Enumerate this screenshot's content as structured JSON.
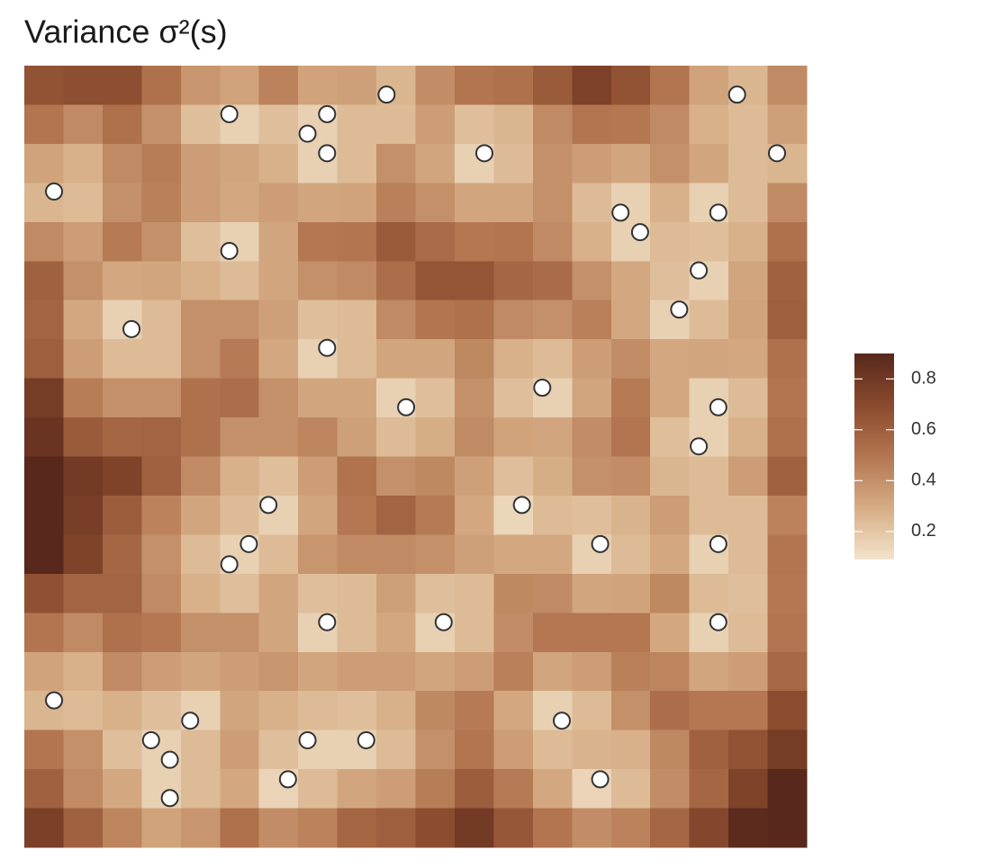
{
  "chart_data": {
    "type": "heatmap",
    "title": "Variance  σ²(s)",
    "xlim": [
      0,
      1
    ],
    "ylim": [
      0,
      1
    ],
    "z": [
      [
        0.66,
        0.68,
        0.68,
        0.52,
        0.38,
        0.33,
        0.45,
        0.33,
        0.34,
        0.26,
        0.41,
        0.5,
        0.52,
        0.62,
        0.75,
        0.66,
        0.5,
        0.33,
        0.26,
        0.42
      ],
      [
        0.5,
        0.42,
        0.52,
        0.4,
        0.23,
        0.16,
        0.23,
        0.16,
        0.24,
        0.24,
        0.35,
        0.23,
        0.26,
        0.42,
        0.5,
        0.49,
        0.42,
        0.28,
        0.24,
        0.34
      ],
      [
        0.33,
        0.28,
        0.42,
        0.47,
        0.35,
        0.32,
        0.28,
        0.16,
        0.24,
        0.4,
        0.32,
        0.16,
        0.24,
        0.4,
        0.35,
        0.32,
        0.4,
        0.32,
        0.24,
        0.26
      ],
      [
        0.26,
        0.24,
        0.4,
        0.46,
        0.35,
        0.31,
        0.35,
        0.32,
        0.33,
        0.46,
        0.4,
        0.32,
        0.32,
        0.4,
        0.24,
        0.16,
        0.28,
        0.16,
        0.24,
        0.42
      ],
      [
        0.42,
        0.35,
        0.48,
        0.4,
        0.23,
        0.16,
        0.32,
        0.49,
        0.5,
        0.62,
        0.54,
        0.49,
        0.5,
        0.42,
        0.28,
        0.16,
        0.24,
        0.23,
        0.28,
        0.52
      ],
      [
        0.59,
        0.4,
        0.31,
        0.32,
        0.28,
        0.24,
        0.32,
        0.4,
        0.42,
        0.53,
        0.65,
        0.65,
        0.57,
        0.54,
        0.4,
        0.31,
        0.23,
        0.16,
        0.32,
        0.59
      ],
      [
        0.58,
        0.31,
        0.16,
        0.24,
        0.4,
        0.4,
        0.34,
        0.23,
        0.24,
        0.42,
        0.5,
        0.52,
        0.42,
        0.4,
        0.46,
        0.31,
        0.16,
        0.24,
        0.33,
        0.6
      ],
      [
        0.6,
        0.35,
        0.24,
        0.24,
        0.4,
        0.48,
        0.31,
        0.16,
        0.24,
        0.32,
        0.32,
        0.43,
        0.28,
        0.24,
        0.35,
        0.41,
        0.31,
        0.32,
        0.31,
        0.52
      ],
      [
        0.78,
        0.47,
        0.4,
        0.4,
        0.52,
        0.53,
        0.4,
        0.32,
        0.32,
        0.16,
        0.23,
        0.4,
        0.23,
        0.16,
        0.32,
        0.48,
        0.31,
        0.16,
        0.24,
        0.5
      ],
      [
        0.83,
        0.62,
        0.57,
        0.58,
        0.52,
        0.4,
        0.4,
        0.44,
        0.34,
        0.24,
        0.29,
        0.42,
        0.33,
        0.32,
        0.41,
        0.5,
        0.23,
        0.16,
        0.28,
        0.52
      ],
      [
        0.9,
        0.79,
        0.74,
        0.59,
        0.42,
        0.28,
        0.23,
        0.35,
        0.51,
        0.4,
        0.43,
        0.34,
        0.23,
        0.29,
        0.4,
        0.41,
        0.26,
        0.24,
        0.35,
        0.59
      ],
      [
        0.9,
        0.77,
        0.61,
        0.45,
        0.32,
        0.24,
        0.16,
        0.32,
        0.49,
        0.58,
        0.48,
        0.31,
        0.14,
        0.24,
        0.23,
        0.27,
        0.35,
        0.24,
        0.24,
        0.45
      ],
      [
        0.9,
        0.74,
        0.57,
        0.4,
        0.24,
        0.16,
        0.24,
        0.38,
        0.42,
        0.42,
        0.4,
        0.34,
        0.31,
        0.31,
        0.16,
        0.24,
        0.31,
        0.16,
        0.24,
        0.5
      ],
      [
        0.67,
        0.58,
        0.58,
        0.42,
        0.28,
        0.23,
        0.32,
        0.23,
        0.24,
        0.34,
        0.23,
        0.24,
        0.43,
        0.42,
        0.32,
        0.33,
        0.43,
        0.24,
        0.23,
        0.49
      ],
      [
        0.5,
        0.42,
        0.52,
        0.49,
        0.4,
        0.4,
        0.32,
        0.16,
        0.24,
        0.31,
        0.16,
        0.24,
        0.41,
        0.49,
        0.49,
        0.49,
        0.31,
        0.16,
        0.24,
        0.5
      ],
      [
        0.33,
        0.28,
        0.42,
        0.35,
        0.32,
        0.35,
        0.38,
        0.32,
        0.35,
        0.35,
        0.32,
        0.35,
        0.46,
        0.32,
        0.35,
        0.46,
        0.44,
        0.32,
        0.35,
        0.56
      ],
      [
        0.26,
        0.24,
        0.28,
        0.23,
        0.16,
        0.32,
        0.28,
        0.24,
        0.23,
        0.28,
        0.43,
        0.48,
        0.31,
        0.16,
        0.24,
        0.4,
        0.53,
        0.49,
        0.49,
        0.69
      ],
      [
        0.5,
        0.4,
        0.23,
        0.16,
        0.24,
        0.35,
        0.23,
        0.16,
        0.16,
        0.24,
        0.4,
        0.5,
        0.35,
        0.24,
        0.27,
        0.28,
        0.43,
        0.59,
        0.66,
        0.78
      ],
      [
        0.59,
        0.42,
        0.31,
        0.16,
        0.24,
        0.31,
        0.15,
        0.24,
        0.32,
        0.35,
        0.47,
        0.61,
        0.48,
        0.31,
        0.15,
        0.24,
        0.41,
        0.57,
        0.74,
        0.9
      ],
      [
        0.76,
        0.59,
        0.44,
        0.33,
        0.38,
        0.52,
        0.41,
        0.45,
        0.57,
        0.6,
        0.69,
        0.79,
        0.64,
        0.5,
        0.41,
        0.45,
        0.57,
        0.72,
        0.88,
        0.9
      ]
    ],
    "zlim": [
      0.09,
      0.9
    ],
    "zticks": [
      0.2,
      0.4,
      0.6,
      0.8
    ],
    "colors": [
      "#f2e3cc",
      "#d6ad85",
      "#b37650",
      "#8a4a2e",
      "#57281b"
    ],
    "points": {
      "x": [
        0.463,
        0.262,
        0.387,
        0.362,
        0.387,
        0.588,
        0.911,
        0.962,
        0.038,
        0.762,
        0.887,
        0.787,
        0.262,
        0.862,
        0.837,
        0.137,
        0.387,
        0.662,
        0.488,
        0.887,
        0.862,
        0.312,
        0.636,
        0.287,
        0.736,
        0.887,
        0.262,
        0.387,
        0.536,
        0.887,
        0.038,
        0.212,
        0.687,
        0.162,
        0.362,
        0.437,
        0.186,
        0.337,
        0.736,
        0.186
      ],
      "y": [
        0.963,
        0.938,
        0.938,
        0.913,
        0.888,
        0.888,
        0.963,
        0.888,
        0.839,
        0.812,
        0.812,
        0.787,
        0.763,
        0.738,
        0.688,
        0.663,
        0.639,
        0.588,
        0.563,
        0.563,
        0.513,
        0.438,
        0.438,
        0.388,
        0.388,
        0.388,
        0.362,
        0.288,
        0.288,
        0.288,
        0.188,
        0.162,
        0.162,
        0.137,
        0.137,
        0.137,
        0.112,
        0.087,
        0.087,
        0.063
      ],
      "fill": "#ffffff",
      "stroke": "#333333"
    }
  }
}
